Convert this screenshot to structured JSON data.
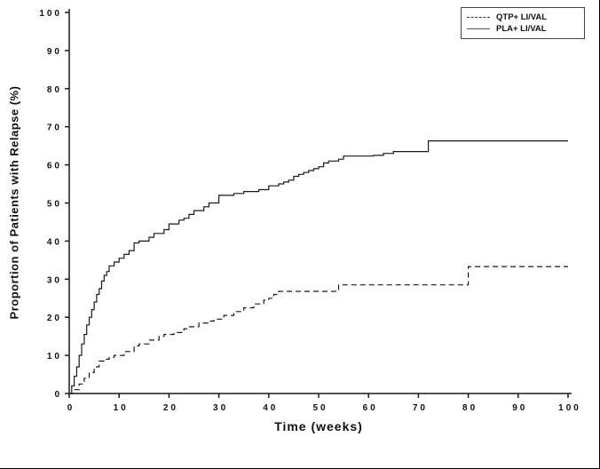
{
  "chart_data": {
    "type": "line",
    "subtype": "step",
    "title": "",
    "xlabel": "Time (weeks)",
    "ylabel": "Proportion of Patients with Relapse (%)",
    "xlim": [
      0,
      100
    ],
    "ylim": [
      0,
      100
    ],
    "xticks": [
      0,
      10,
      20,
      30,
      40,
      50,
      60,
      70,
      80,
      90,
      100
    ],
    "yticks": [
      0,
      10,
      20,
      30,
      40,
      50,
      60,
      70,
      80,
      90,
      100
    ],
    "grid": false,
    "legend_position": "top-right",
    "line_color": "#1a1a1a",
    "series": [
      {
        "name": "QTP+ LI/VAL",
        "line_style": "dashed",
        "points": [
          [
            0,
            0
          ],
          [
            1,
            1
          ],
          [
            2,
            2.5
          ],
          [
            3,
            4
          ],
          [
            4,
            5.5
          ],
          [
            5,
            7
          ],
          [
            6,
            8.5
          ],
          [
            7,
            9
          ],
          [
            8,
            9.5
          ],
          [
            9,
            10
          ],
          [
            11,
            11
          ],
          [
            13,
            12.5
          ],
          [
            14,
            13
          ],
          [
            16,
            14
          ],
          [
            18,
            15
          ],
          [
            19,
            15.5
          ],
          [
            21,
            16
          ],
          [
            23,
            17
          ],
          [
            24,
            17.5
          ],
          [
            26,
            18.5
          ],
          [
            28,
            19
          ],
          [
            29,
            19.5
          ],
          [
            31,
            20.5
          ],
          [
            33,
            21.5
          ],
          [
            35,
            22.5
          ],
          [
            37,
            23.5
          ],
          [
            39,
            24.5
          ],
          [
            40,
            25
          ],
          [
            41,
            26
          ],
          [
            42,
            26.8
          ],
          [
            54,
            28.5
          ],
          [
            80,
            33.3
          ],
          [
            100,
            33.3
          ]
        ]
      },
      {
        "name": "PLA+ LI/VAL",
        "line_style": "solid",
        "points": [
          [
            0,
            0
          ],
          [
            0.5,
            2
          ],
          [
            1,
            4.5
          ],
          [
            1.5,
            7
          ],
          [
            2,
            10
          ],
          [
            2.5,
            13
          ],
          [
            3,
            15.5
          ],
          [
            3.5,
            18
          ],
          [
            4,
            20
          ],
          [
            4.5,
            22
          ],
          [
            5,
            24
          ],
          [
            5.5,
            26
          ],
          [
            6,
            27.5
          ],
          [
            6.5,
            29.5
          ],
          [
            7,
            31
          ],
          [
            7.5,
            32
          ],
          [
            8,
            33.5
          ],
          [
            9,
            34.5
          ],
          [
            10,
            35.5
          ],
          [
            11,
            36.5
          ],
          [
            12,
            37.5
          ],
          [
            13,
            39.5
          ],
          [
            14,
            40
          ],
          [
            16,
            41
          ],
          [
            17,
            42
          ],
          [
            19,
            43
          ],
          [
            20,
            44.5
          ],
          [
            22,
            45.5
          ],
          [
            23,
            46
          ],
          [
            24,
            47
          ],
          [
            25,
            48
          ],
          [
            27,
            49
          ],
          [
            28,
            50
          ],
          [
            30,
            52
          ],
          [
            33,
            52.5
          ],
          [
            35,
            53
          ],
          [
            38,
            53.5
          ],
          [
            40,
            54.5
          ],
          [
            42,
            55
          ],
          [
            43,
            55.5
          ],
          [
            44,
            56
          ],
          [
            45,
            57
          ],
          [
            46,
            57.5
          ],
          [
            47,
            58
          ],
          [
            48,
            58.5
          ],
          [
            49,
            59
          ],
          [
            50,
            59.5
          ],
          [
            51,
            60.5
          ],
          [
            52,
            61
          ],
          [
            54,
            61.5
          ],
          [
            55,
            62.3
          ],
          [
            61,
            62.5
          ],
          [
            63,
            63
          ],
          [
            65,
            63.5
          ],
          [
            72,
            66.3
          ],
          [
            100,
            66.3
          ]
        ]
      }
    ]
  }
}
